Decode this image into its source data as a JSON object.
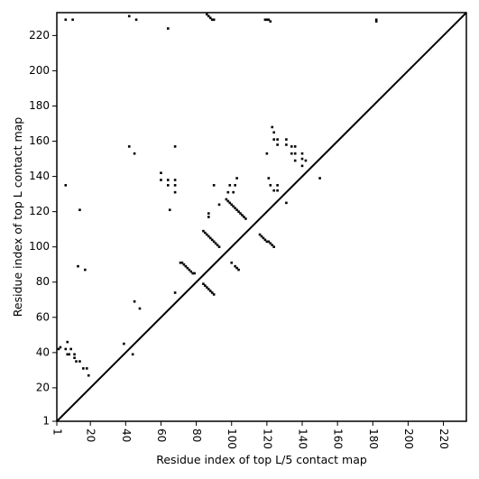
{
  "chart_data": {
    "type": "scatter",
    "title": "",
    "xlabel": "Residue index of top L/5 contact map",
    "ylabel": "Residue index of top L contact map",
    "xlim": [
      1,
      233
    ],
    "ylim": [
      1,
      233
    ],
    "x_ticks": [
      1,
      20,
      40,
      60,
      80,
      100,
      120,
      140,
      160,
      180,
      200,
      220
    ],
    "y_ticks": [
      1,
      20,
      40,
      60,
      80,
      100,
      120,
      140,
      160,
      180,
      200,
      220
    ],
    "grid": false,
    "diagonal": true,
    "mark_color": "#000000",
    "series": [
      {
        "values": [
          [
            6,
            229
          ],
          [
            10,
            229
          ],
          [
            42,
            231
          ],
          [
            46,
            229
          ],
          [
            64,
            224
          ],
          [
            86,
            232
          ],
          [
            87,
            231
          ],
          [
            88,
            230
          ],
          [
            89,
            229
          ],
          [
            90,
            229
          ],
          [
            119,
            229
          ],
          [
            120,
            229
          ],
          [
            121,
            229
          ],
          [
            122,
            228
          ],
          [
            182,
            229
          ],
          [
            182,
            228
          ],
          [
            42,
            157
          ],
          [
            45,
            153
          ],
          [
            68,
            157
          ],
          [
            60,
            142
          ],
          [
            60,
            138
          ],
          [
            64,
            138
          ],
          [
            68,
            138
          ],
          [
            64,
            135
          ],
          [
            68,
            135
          ],
          [
            90,
            135
          ],
          [
            6,
            135
          ],
          [
            68,
            131
          ],
          [
            98,
            131
          ],
          [
            101,
            131
          ],
          [
            99,
            135
          ],
          [
            102,
            135
          ],
          [
            103,
            139
          ],
          [
            121,
            139
          ],
          [
            134,
            157
          ],
          [
            136,
            157
          ],
          [
            131,
            161
          ],
          [
            131,
            158
          ],
          [
            123,
            168
          ],
          [
            124,
            165
          ],
          [
            124,
            161
          ],
          [
            126,
            161
          ],
          [
            126,
            158
          ],
          [
            120,
            153
          ],
          [
            134,
            153
          ],
          [
            136,
            153
          ],
          [
            140,
            153
          ],
          [
            140,
            150
          ],
          [
            136,
            149
          ],
          [
            142,
            149
          ],
          [
            140,
            146
          ],
          [
            150,
            139
          ],
          [
            126,
            135
          ],
          [
            122,
            135
          ],
          [
            124,
            132
          ],
          [
            126,
            132
          ],
          [
            131,
            125
          ],
          [
            14,
            121
          ],
          [
            65,
            121
          ],
          [
            87,
            119
          ],
          [
            87,
            117
          ],
          [
            93,
            124
          ],
          [
            97,
            127
          ],
          [
            98,
            126
          ],
          [
            99,
            125
          ],
          [
            100,
            124
          ],
          [
            101,
            123
          ],
          [
            102,
            122
          ],
          [
            103,
            121
          ],
          [
            104,
            120
          ],
          [
            105,
            119
          ],
          [
            106,
            118
          ],
          [
            107,
            117
          ],
          [
            108,
            116
          ],
          [
            84,
            109
          ],
          [
            85,
            108
          ],
          [
            86,
            107
          ],
          [
            87,
            106
          ],
          [
            88,
            105
          ],
          [
            89,
            104
          ],
          [
            90,
            103
          ],
          [
            91,
            102
          ],
          [
            92,
            101
          ],
          [
            93,
            100
          ],
          [
            116,
            107
          ],
          [
            117,
            106
          ],
          [
            118,
            105
          ],
          [
            119,
            104
          ],
          [
            120,
            103
          ],
          [
            121,
            103
          ],
          [
            122,
            102
          ],
          [
            123,
            101
          ],
          [
            124,
            100
          ],
          [
            71,
            91
          ],
          [
            72,
            91
          ],
          [
            73,
            90
          ],
          [
            74,
            89
          ],
          [
            75,
            88
          ],
          [
            76,
            87
          ],
          [
            77,
            86
          ],
          [
            78,
            85
          ],
          [
            79,
            85
          ],
          [
            100,
            91
          ],
          [
            102,
            89
          ],
          [
            103,
            88
          ],
          [
            104,
            87
          ],
          [
            13,
            89
          ],
          [
            17,
            87
          ],
          [
            84,
            79
          ],
          [
            85,
            78
          ],
          [
            86,
            77
          ],
          [
            87,
            76
          ],
          [
            88,
            75
          ],
          [
            89,
            74
          ],
          [
            90,
            73
          ],
          [
            68,
            74
          ],
          [
            45,
            69
          ],
          [
            48,
            65
          ],
          [
            3,
            43
          ],
          [
            2,
            42
          ],
          [
            7,
            46
          ],
          [
            6,
            42
          ],
          [
            9,
            42
          ],
          [
            7,
            39
          ],
          [
            8,
            39
          ],
          [
            11,
            39
          ],
          [
            11,
            37
          ],
          [
            12,
            35
          ],
          [
            14,
            35
          ],
          [
            16,
            31
          ],
          [
            18,
            31
          ],
          [
            19,
            27
          ],
          [
            39,
            45
          ],
          [
            44,
            39
          ]
        ]
      }
    ]
  }
}
